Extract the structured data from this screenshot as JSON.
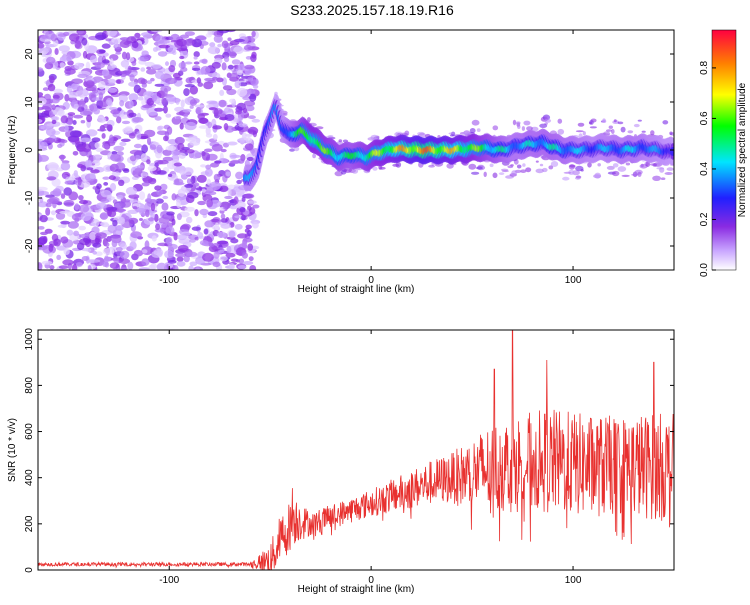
{
  "title": "S233.2025.157.18.19.R16",
  "charts": [
    {
      "type": "heatmap",
      "xlabel": "Height of straight line (km)",
      "ylabel": "Frequency (Hz)",
      "xlim": [
        -165,
        150
      ],
      "ylim": [
        -25,
        25
      ],
      "xticks": [
        -100,
        0,
        100
      ],
      "yticks": [
        -20,
        -10,
        0,
        10,
        20
      ],
      "colorbar": {
        "label": "Normalized spectral amplitude",
        "range": [
          0,
          0.95
        ],
        "ticks": [
          0.0,
          0.2,
          0.4,
          0.6,
          0.8
        ],
        "colormap": [
          "#ffffff",
          "#8a2be2",
          "#2020ff",
          "#00e5ff",
          "#00ff00",
          "#ffff00",
          "#ff8000",
          "#ff0040"
        ]
      },
      "noise_region": {
        "x_from": -165,
        "x_to": -57,
        "f_from": -25,
        "f_to": 25,
        "amplitude": 0.15
      },
      "ridge": [
        {
          "x": -60,
          "f": -6
        },
        {
          "x": -56,
          "f": -3
        },
        {
          "x": -52,
          "f": 4
        },
        {
          "x": -47,
          "f": 9
        },
        {
          "x": -44,
          "f": 5
        },
        {
          "x": -40,
          "f": 3
        },
        {
          "x": -34,
          "f": 4
        },
        {
          "x": -28,
          "f": 2
        },
        {
          "x": -22,
          "f": 0
        },
        {
          "x": -16,
          "f": -1.5
        },
        {
          "x": -8,
          "f": -1
        },
        {
          "x": -2,
          "f": -1.5
        },
        {
          "x": 4,
          "f": -0.5
        },
        {
          "x": 12,
          "f": 0.3
        },
        {
          "x": 25,
          "f": 0
        },
        {
          "x": 40,
          "f": 0
        },
        {
          "x": 55,
          "f": 0.5
        },
        {
          "x": 65,
          "f": 0
        },
        {
          "x": 75,
          "f": 1
        },
        {
          "x": 85,
          "f": 1.5
        },
        {
          "x": 95,
          "f": 0
        },
        {
          "x": 105,
          "f": 0
        },
        {
          "x": 115,
          "f": 0.5
        },
        {
          "x": 125,
          "f": 0
        },
        {
          "x": 135,
          "f": 0.5
        },
        {
          "x": 150,
          "f": -0.5
        }
      ],
      "ridge_amplitude": [
        {
          "x": -60,
          "a": 0.4
        },
        {
          "x": -45,
          "a": 0.35
        },
        {
          "x": -30,
          "a": 0.7
        },
        {
          "x": -10,
          "a": 0.55
        },
        {
          "x": 10,
          "a": 0.75
        },
        {
          "x": 25,
          "a": 0.9
        },
        {
          "x": 45,
          "a": 0.75
        },
        {
          "x": 70,
          "a": 0.45
        },
        {
          "x": 90,
          "a": 0.5
        },
        {
          "x": 110,
          "a": 0.4
        },
        {
          "x": 130,
          "a": 0.45
        },
        {
          "x": 150,
          "a": 0.35
        }
      ]
    },
    {
      "type": "line",
      "xlabel": "Height of straight line (km)",
      "ylabel": "SNR (10 * v/v)",
      "xlim": [
        -165,
        150
      ],
      "ylim": [
        0,
        1040
      ],
      "xticks": [
        -100,
        0,
        100
      ],
      "yticks": [
        0,
        200,
        400,
        600,
        800,
        1000
      ],
      "color": "#e8312f",
      "series": [
        {
          "x": -165,
          "y": 25
        },
        {
          "x": -60,
          "y": 25
        },
        {
          "x": -50,
          "y": 40
        },
        {
          "x": -45,
          "y": 130
        },
        {
          "x": -38,
          "y": 220
        },
        {
          "x": -30,
          "y": 200
        },
        {
          "x": -20,
          "y": 230
        },
        {
          "x": -10,
          "y": 260
        },
        {
          "x": 0,
          "y": 290
        },
        {
          "x": 10,
          "y": 320
        },
        {
          "x": 20,
          "y": 350
        },
        {
          "x": 30,
          "y": 380
        },
        {
          "x": 40,
          "y": 400
        },
        {
          "x": 50,
          "y": 420
        },
        {
          "x": 60,
          "y": 440
        },
        {
          "x": 70,
          "y": 460
        },
        {
          "x": 80,
          "y": 470
        },
        {
          "x": 90,
          "y": 470
        },
        {
          "x": 100,
          "y": 460
        },
        {
          "x": 110,
          "y": 450
        },
        {
          "x": 120,
          "y": 450
        },
        {
          "x": 130,
          "y": 450
        },
        {
          "x": 140,
          "y": 450
        },
        {
          "x": 150,
          "y": 440
        }
      ],
      "spread": [
        {
          "x": -165,
          "s": 8
        },
        {
          "x": -60,
          "s": 8
        },
        {
          "x": -45,
          "s": 110
        },
        {
          "x": -38,
          "s": 110
        },
        {
          "x": -30,
          "s": 50
        },
        {
          "x": 0,
          "s": 60
        },
        {
          "x": 40,
          "s": 110
        },
        {
          "x": 60,
          "s": 200
        },
        {
          "x": 90,
          "s": 230
        },
        {
          "x": 120,
          "s": 220
        },
        {
          "x": 150,
          "s": 240
        }
      ],
      "peaks": [
        {
          "x": -39,
          "y": 355
        },
        {
          "x": 61,
          "y": 870
        },
        {
          "x": 70,
          "y": 1040
        },
        {
          "x": 87,
          "y": 910
        },
        {
          "x": 140,
          "y": 900
        }
      ]
    }
  ]
}
